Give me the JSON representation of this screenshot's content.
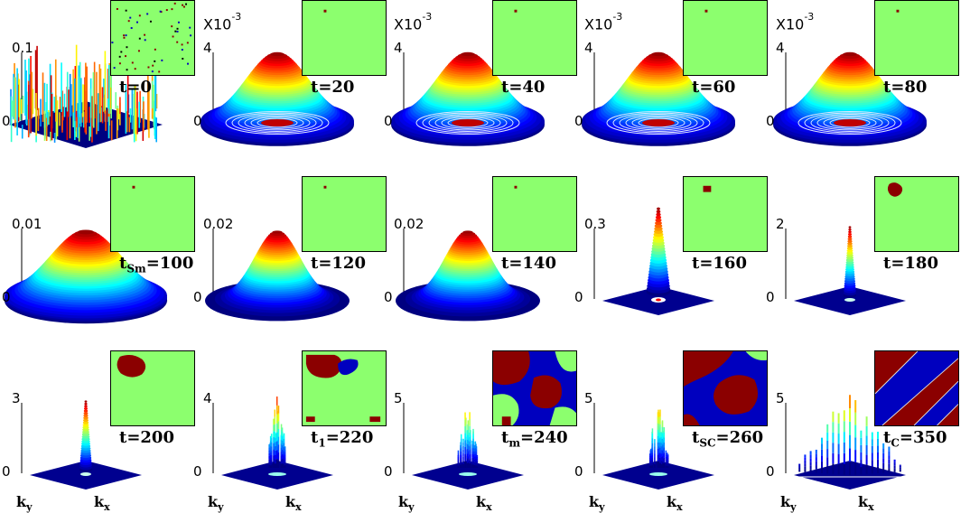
{
  "panels": [
    {
      "id": "p1",
      "time_label": "t=0",
      "t_main": "t",
      "t_sub": "",
      "t_rest": "=0",
      "zmax": "0.1",
      "zmin": "0",
      "scale": "",
      "kind": "noise",
      "inset": "noise"
    },
    {
      "id": "p2",
      "t_main": "t",
      "t_sub": "",
      "t_rest": "=20",
      "zmax": "4",
      "zmin": "0",
      "scale": "X10",
      "scale_exp": "-3",
      "kind": "gauss_rings",
      "inset": "dot"
    },
    {
      "id": "p3",
      "t_main": "t",
      "t_sub": "",
      "t_rest": "=40",
      "zmax": "4",
      "zmin": "0",
      "scale": "X10",
      "scale_exp": "-3",
      "kind": "gauss_rings",
      "inset": "dot"
    },
    {
      "id": "p4",
      "t_main": "t",
      "t_sub": "",
      "t_rest": "=60",
      "zmax": "4",
      "zmin": "0",
      "scale": "X10",
      "scale_exp": "-3",
      "kind": "gauss_rings",
      "inset": "dot"
    },
    {
      "id": "p5",
      "t_main": "t",
      "t_sub": "",
      "t_rest": "=80",
      "zmax": "4",
      "zmin": "0",
      "scale": "X10",
      "scale_exp": "-3",
      "kind": "gauss_rings",
      "inset": "dot"
    },
    {
      "id": "p6",
      "t_main": "t",
      "t_sub": "Sm",
      "t_rest": "=100",
      "zmax": "0.01",
      "zmin": "0",
      "scale": "",
      "kind": "gauss_wide",
      "inset": "dot"
    },
    {
      "id": "p7",
      "t_main": "t",
      "t_sub": "",
      "t_rest": "=120",
      "zmax": "0.02",
      "zmin": "0",
      "scale": "",
      "kind": "gauss_mid",
      "inset": "dot"
    },
    {
      "id": "p8",
      "t_main": "t",
      "t_sub": "",
      "t_rest": "=140",
      "zmax": "0.02",
      "zmin": "0",
      "scale": "",
      "kind": "gauss_mid",
      "inset": "dot"
    },
    {
      "id": "p9",
      "t_main": "t",
      "t_sub": "",
      "t_rest": "=160",
      "zmax": "0.3",
      "zmin": "0",
      "scale": "",
      "kind": "spike",
      "inset": "blob_small"
    },
    {
      "id": "p10",
      "t_main": "t",
      "t_sub": "",
      "t_rest": "=180",
      "zmax": "2",
      "zmin": "0",
      "scale": "",
      "kind": "spike_thin",
      "inset": "blob_med"
    },
    {
      "id": "p11",
      "t_main": "t",
      "t_sub": "",
      "t_rest": "=200",
      "zmax": "3",
      "zmin": "0",
      "scale": "",
      "kind": "spike_thin",
      "inset": "blob_big",
      "axes": true
    },
    {
      "id": "p12",
      "t_main": "t",
      "t_sub": "1",
      "t_rest": "=220",
      "zmax": "4",
      "zmin": "0",
      "scale": "",
      "kind": "spike_multi",
      "inset": "t220",
      "axes": true
    },
    {
      "id": "p13",
      "t_main": "t",
      "t_sub": "m",
      "t_rest": "=240",
      "zmax": "5",
      "zmin": "0",
      "scale": "",
      "kind": "spike_multi2",
      "inset": "t240",
      "axes": true
    },
    {
      "id": "p14",
      "t_main": "t",
      "t_sub": "SC",
      "t_rest": "=260",
      "zmax": "5",
      "zmin": "0",
      "scale": "",
      "kind": "spike_multi2",
      "inset": "t260",
      "axes": true
    },
    {
      "id": "p15",
      "t_main": "t",
      "t_sub": "C",
      "t_rest": "=350",
      "zmax": "5",
      "zmin": "0",
      "scale": "",
      "kind": "comb",
      "inset": "stripes",
      "axes": true
    }
  ],
  "axis_labels": {
    "ky_main": "k",
    "ky_sub": "y",
    "kx_main": "k",
    "kx_sub": "x"
  },
  "colors": {
    "green": "#8cff6e",
    "red": "#8b0000",
    "blue": "#0000bf",
    "dot": "#8b0000"
  }
}
